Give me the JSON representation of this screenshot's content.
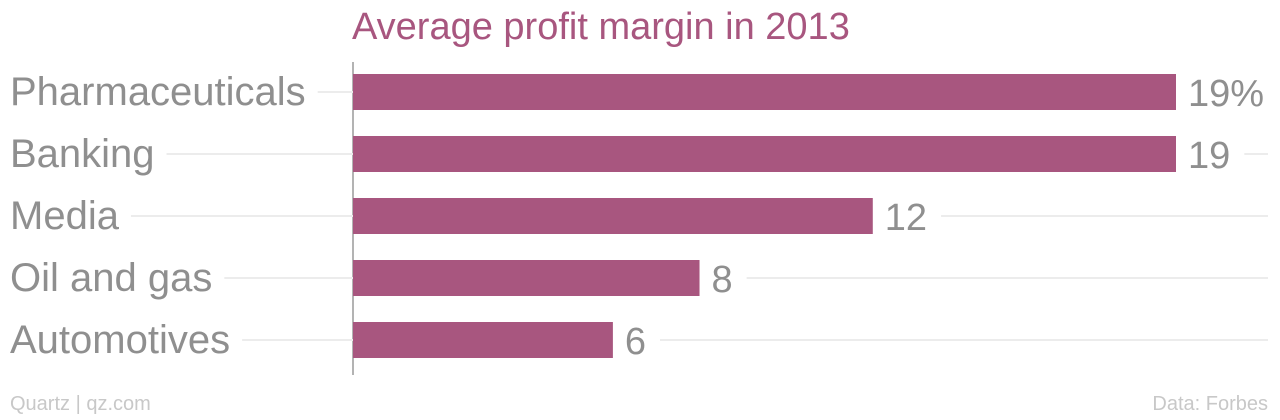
{
  "chart_data": {
    "type": "bar",
    "orientation": "horizontal",
    "title": "Average profit margin in 2013",
    "categories": [
      "Pharmaceuticals",
      "Banking",
      "Media",
      "Oil and gas",
      "Automotives"
    ],
    "values": [
      19,
      19,
      12,
      8,
      6
    ],
    "value_labels": [
      "19%",
      "19",
      "12",
      "8",
      "6"
    ],
    "xlabel": "",
    "ylabel": "",
    "xlim": [
      0,
      19
    ],
    "grid": true,
    "bar_color": "#a8567f"
  },
  "footer": {
    "source_left": "Quartz | qz.com",
    "source_right": "Data: Forbes"
  }
}
